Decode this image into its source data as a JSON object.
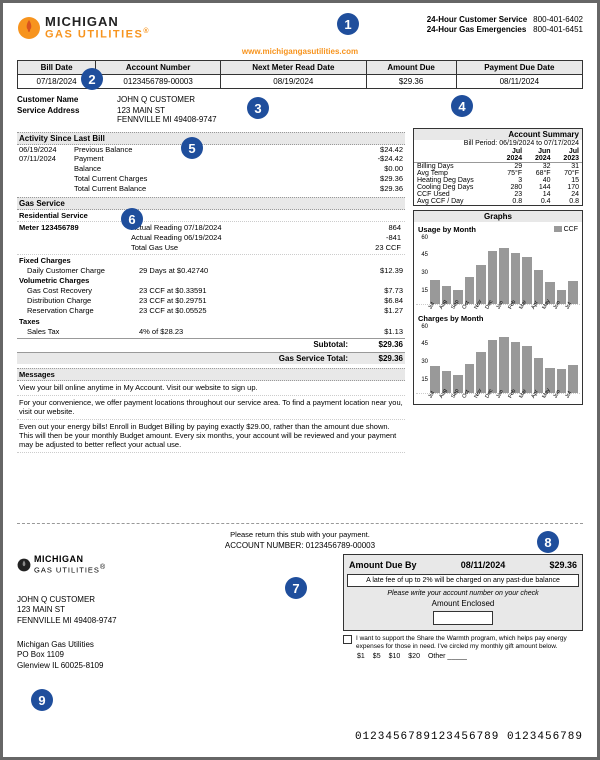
{
  "company": {
    "name_line1": "MICHIGAN",
    "name_line2": "GAS UTILITIES",
    "reg": "®",
    "website": "www.michigangasutilities.com"
  },
  "callouts": {
    "1": "1",
    "2": "2",
    "3": "3",
    "4": "4",
    "5": "5",
    "6": "6",
    "7": "7",
    "8": "8",
    "9": "9"
  },
  "customer_service": {
    "line1": "24-Hour Customer Service",
    "line2": "24-Hour Gas Emergencies",
    "phone1": "800-401-6402",
    "phone2": "800-401-6451"
  },
  "bill_header": {
    "cols": [
      "Bill Date",
      "Account Number",
      "Next Meter Read Date",
      "Amount Due",
      "Payment Due Date"
    ],
    "vals": [
      "07/18/2024",
      "0123456789-00003",
      "08/19/2024",
      "$29.36",
      "08/11/2024"
    ]
  },
  "customer": {
    "name_lbl": "Customer Name",
    "addr_lbl": "Service Address",
    "name": "JOHN Q CUSTOMER",
    "addr1": "123 MAIN ST",
    "addr2": "FENNVILLE MI 49408-9747"
  },
  "activity": {
    "title": "Activity Since Last Bill",
    "rows": [
      {
        "date": "06/19/2024",
        "desc": "Previous Balance",
        "amt": "$24.42"
      },
      {
        "date": "07/11/2024",
        "desc": "Payment",
        "amt": "-$24.42"
      },
      {
        "date": "",
        "desc": "Balance",
        "amt": "$0.00"
      },
      {
        "date": "",
        "desc": "Total Current Charges",
        "amt": "$29.36"
      },
      {
        "date": "",
        "desc": "Total Current Balance",
        "amt": "$29.36"
      }
    ]
  },
  "gas_service": {
    "title": "Gas Service",
    "subtitle": "Residential Service",
    "meter_lbl": "Meter 123456789",
    "readings": [
      {
        "desc": "Actual Reading 07/18/2024",
        "val": "864"
      },
      {
        "desc": "Actual Reading 06/19/2024",
        "val": "-841"
      },
      {
        "desc": "Total Gas Use",
        "val": "23 CCF"
      }
    ]
  },
  "charges": {
    "fixed_hdr": "Fixed Charges",
    "fixed": [
      {
        "lbl": "Daily Customer Charge",
        "detail": "29 Days at $0.42740",
        "amt": "$12.39"
      }
    ],
    "vol_hdr": "Volumetric Charges",
    "vol": [
      {
        "lbl": "Gas Cost Recovery",
        "detail": "23 CCF at $0.33591",
        "amt": "$7.73"
      },
      {
        "lbl": "Distribution Charge",
        "detail": "23 CCF at $0.29751",
        "amt": "$6.84"
      },
      {
        "lbl": "Reservation Charge",
        "detail": "23 CCF at $0.05525",
        "amt": "$1.27"
      }
    ],
    "tax_hdr": "Taxes",
    "tax": [
      {
        "lbl": "Sales Tax",
        "detail": "4% of $28.23",
        "amt": "$1.13"
      }
    ],
    "subtotal_lbl": "Subtotal:",
    "subtotal": "$29.36",
    "total_lbl": "Gas Service Total:",
    "total": "$29.36"
  },
  "messages": {
    "title": "Messages",
    "items": [
      "View your bill online anytime in My Account. Visit our website to sign up.",
      "For your convenience, we offer payment locations throughout our service area. To find a payment location near you, visit our website.",
      "Even out your energy bills! Enroll in Budget Billing by paying exactly $29.00, rather than the amount due shown. This will then be your monthly Budget amount. Every six months, your account will be reviewed and your payment may be adjusted to better reflect your actual use."
    ]
  },
  "account_summary": {
    "title": "Account Summary",
    "period": "Bill Period: 06/19/2024 to 07/17/2024",
    "cols": [
      "",
      "Jul 2024",
      "Jun 2024",
      "Jul 2023"
    ],
    "rows": [
      [
        "Billing Days",
        "29",
        "32",
        "31"
      ],
      [
        "Avg Temp",
        "75°F",
        "68°F",
        "70°F"
      ],
      [
        "Heating Deg Days",
        "3",
        "40",
        "15"
      ],
      [
        "Cooling Deg Days",
        "280",
        "144",
        "170"
      ],
      [
        "CCF Used",
        "23",
        "14",
        "24"
      ],
      [
        "Avg CCF / Day",
        "0.8",
        "0.4",
        "0.8"
      ]
    ]
  },
  "graphs": {
    "title": "Graphs",
    "usage": {
      "title": "Usage by Month",
      "legend": "CCF",
      "ymax": 60,
      "yticks": [
        "60",
        "45",
        "30",
        "15"
      ],
      "months": [
        "Jul",
        "Aug",
        "Sep",
        "Oct",
        "Nov",
        "Dec",
        "Jan",
        "Feb",
        "Mar",
        "Apr",
        "May",
        "Jun",
        "Jul"
      ],
      "values": [
        24,
        18,
        14,
        28,
        40,
        55,
        58,
        52,
        48,
        35,
        22,
        14,
        23
      ],
      "bar_color": "#999999"
    },
    "charges": {
      "title": "Charges by Month",
      "ymax": 60,
      "yticks": [
        "60",
        "45",
        "30",
        "15"
      ],
      "months": [
        "Jul",
        "Aug",
        "Sep",
        "Oct",
        "Nov",
        "Dec",
        "Jan",
        "Feb",
        "Mar",
        "Apr",
        "May",
        "Jun",
        "Jul"
      ],
      "values": [
        28,
        22,
        18,
        30,
        42,
        55,
        58,
        52,
        48,
        36,
        26,
        24,
        29
      ],
      "bar_color": "#999999"
    }
  },
  "stub": {
    "return_text": "Please return this stub with your payment.",
    "acct_lbl": "ACCOUNT NUMBER: 0123456789-00003",
    "due_lbl": "Amount Due By",
    "due_date": "08/11/2024",
    "due_amt": "$29.36",
    "late_fee": "A late fee of up to 2% will be charged on any past-due balance",
    "write_acct": "Please write your account number on your check",
    "amt_enclosed": "Amount Enclosed",
    "warmth": "I want to support the Share the Warmth program, which helps pay energy expenses for those in need. I've circled my monthly gift amount below.",
    "warmth_opts": [
      "$1",
      "$5",
      "$10",
      "$20",
      "Other _____"
    ],
    "addr": {
      "l1": "JOHN Q CUSTOMER",
      "l2": "123 MAIN ST",
      "l3": "FENNVILLE MI 49408-9747"
    },
    "remit": {
      "l1": "Michigan Gas Utilities",
      "l2": "PO Box 1109",
      "l3": "Glenview IL 60025-8109"
    },
    "ocr": "0123456789123456789 0123456789"
  },
  "colors": {
    "accent": "#1f4e9c",
    "orange": "#f7941e",
    "gray_bg": "#e8e8e8",
    "bar": "#999999"
  }
}
